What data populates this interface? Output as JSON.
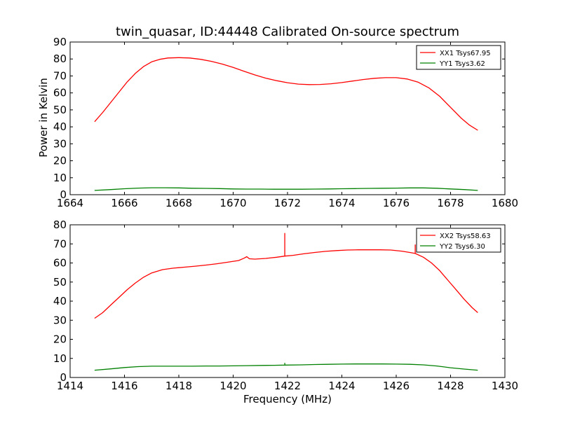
{
  "title": "twin_quasar, ID:44448 Calibrated On-source spectrum",
  "ylabel": "Power in Kelvin",
  "xlabel": "Frequency (MHz)",
  "colors": {
    "xx": "#ff0000",
    "yy": "#008000"
  },
  "chart_data": [
    {
      "type": "line",
      "xlim": [
        1664,
        1680
      ],
      "ylim": [
        0,
        90
      ],
      "xticks": [
        1664,
        1666,
        1668,
        1670,
        1672,
        1674,
        1676,
        1678,
        1680
      ],
      "yticks": [
        0,
        10,
        20,
        30,
        40,
        50,
        60,
        70,
        80,
        90
      ],
      "legend": "top-right",
      "grid": false,
      "series": [
        {
          "name": "XX1 Tsys67.95",
          "color": "#ff0000",
          "x": [
            1664.9,
            1665.2,
            1665.5,
            1665.8,
            1666.1,
            1666.4,
            1666.7,
            1667.0,
            1667.3,
            1667.6,
            1668.0,
            1668.4,
            1668.8,
            1669.2,
            1669.6,
            1670.0,
            1670.4,
            1670.8,
            1671.2,
            1671.6,
            1672.0,
            1672.4,
            1672.8,
            1673.2,
            1673.6,
            1674.0,
            1674.4,
            1674.8,
            1675.2,
            1675.6,
            1676.0,
            1676.4,
            1676.8,
            1677.2,
            1677.6,
            1678.0,
            1678.4,
            1678.7,
            1679.0
          ],
          "y": [
            43,
            48.5,
            54.5,
            60.5,
            66.5,
            71.5,
            75.5,
            78.3,
            79.8,
            80.6,
            80.8,
            80.6,
            79.8,
            78.6,
            77.0,
            75.0,
            72.8,
            70.6,
            68.7,
            67.2,
            66.0,
            65.2,
            64.9,
            65.0,
            65.4,
            66.1,
            67.0,
            67.9,
            68.6,
            69.0,
            69.0,
            68.2,
            66.4,
            63.0,
            58.0,
            51.5,
            45.0,
            41.0,
            38.0
          ]
        },
        {
          "name": "YY1 Tsys3.62",
          "color": "#008000",
          "x": [
            1664.9,
            1665.5,
            1666.0,
            1666.5,
            1667.0,
            1667.5,
            1668.0,
            1668.5,
            1669.0,
            1669.5,
            1670.0,
            1670.5,
            1671.0,
            1671.5,
            1672.0,
            1672.5,
            1673.0,
            1673.5,
            1674.0,
            1674.5,
            1675.0,
            1675.5,
            1676.0,
            1676.5,
            1677.0,
            1677.5,
            1678.0,
            1678.5,
            1679.0
          ],
          "y": [
            2.5,
            3.0,
            3.5,
            3.9,
            4.1,
            4.1,
            4.0,
            3.8,
            3.7,
            3.6,
            3.4,
            3.3,
            3.3,
            3.2,
            3.2,
            3.2,
            3.3,
            3.4,
            3.5,
            3.6,
            3.7,
            3.8,
            3.9,
            4.0,
            4.0,
            3.8,
            3.4,
            3.0,
            2.5
          ]
        }
      ]
    },
    {
      "type": "line",
      "xlim": [
        1414,
        1430
      ],
      "ylim": [
        0,
        80
      ],
      "xticks": [
        1414,
        1416,
        1418,
        1420,
        1422,
        1424,
        1426,
        1428,
        1430
      ],
      "yticks": [
        0,
        10,
        20,
        30,
        40,
        50,
        60,
        70,
        80
      ],
      "legend": "top-right",
      "grid": false,
      "series": [
        {
          "name": "XX2 Tsys58.63",
          "color": "#ff0000",
          "x": [
            1414.9,
            1415.2,
            1415.5,
            1415.8,
            1416.1,
            1416.4,
            1416.7,
            1417.0,
            1417.4,
            1417.8,
            1418.2,
            1418.6,
            1419.0,
            1419.4,
            1419.8,
            1420.2,
            1420.4,
            1420.5,
            1420.6,
            1420.8,
            1421.2,
            1421.6,
            1421.9,
            1421.9,
            1421.9,
            1422.2,
            1422.6,
            1423.0,
            1423.4,
            1423.8,
            1424.2,
            1424.6,
            1425.0,
            1425.4,
            1425.8,
            1426.2,
            1426.5,
            1426.7,
            1426.7,
            1426.7,
            1427.0,
            1427.3,
            1427.6,
            1427.9,
            1428.2,
            1428.5,
            1428.8,
            1429.0
          ],
          "y": [
            31.0,
            34.0,
            38.0,
            42.0,
            46.0,
            49.5,
            52.5,
            54.8,
            56.5,
            57.3,
            57.8,
            58.3,
            58.9,
            59.6,
            60.4,
            61.3,
            62.5,
            63.3,
            62.2,
            62.0,
            62.4,
            63.0,
            63.6,
            75.5,
            63.6,
            64.0,
            64.8,
            65.5,
            66.1,
            66.5,
            66.8,
            66.9,
            66.9,
            66.9,
            66.8,
            66.2,
            65.5,
            65.0,
            69.5,
            65.0,
            63.0,
            60.0,
            56.0,
            51.0,
            46.0,
            41.0,
            36.5,
            34.0
          ]
        },
        {
          "name": "YY2 Tsys6.30",
          "color": "#008000",
          "x": [
            1414.9,
            1415.5,
            1416.0,
            1416.5,
            1417.0,
            1417.5,
            1418.0,
            1418.5,
            1419.0,
            1419.5,
            1420.0,
            1420.5,
            1421.0,
            1421.5,
            1421.9,
            1421.9,
            1421.9,
            1422.5,
            1423.0,
            1423.5,
            1424.0,
            1424.5,
            1425.0,
            1425.5,
            1426.0,
            1426.5,
            1427.0,
            1427.5,
            1428.0,
            1428.5,
            1429.0
          ],
          "y": [
            3.8,
            4.5,
            5.2,
            5.7,
            5.9,
            5.9,
            5.9,
            5.9,
            6.0,
            6.0,
            6.1,
            6.2,
            6.3,
            6.4,
            6.5,
            7.5,
            6.5,
            6.6,
            6.8,
            6.9,
            7.0,
            7.1,
            7.1,
            7.1,
            7.0,
            6.9,
            6.6,
            6.0,
            5.1,
            4.4,
            3.8
          ]
        }
      ]
    }
  ]
}
